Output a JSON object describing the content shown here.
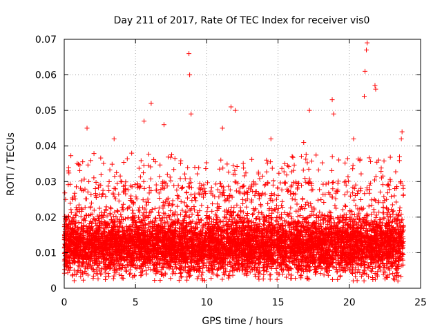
{
  "chart_data": {
    "type": "scatter",
    "title": "Day 211 of 2017, Rate Of TEC Index for receiver vis0",
    "xlabel": "GPS time / hours",
    "ylabel": "ROTI / TECUs",
    "xlim": [
      0,
      25
    ],
    "ylim": [
      0,
      0.07
    ],
    "xticks": [
      0,
      5,
      10,
      15,
      20,
      25
    ],
    "xtick_labels": [
      "0",
      "5",
      "10",
      "15",
      "20",
      "25"
    ],
    "yticks": [
      0,
      0.01,
      0.02,
      0.03,
      0.04,
      0.05,
      0.06,
      0.07
    ],
    "ytick_labels": [
      "0",
      "0.01",
      "0.02",
      "0.03",
      "0.04",
      "0.05",
      "0.06",
      "0.07"
    ],
    "grid": true,
    "marker": "+",
    "color": "#ff0000",
    "data_x_range_hours": [
      0,
      23.8
    ],
    "typical_roti_band": [
      0.005,
      0.025
    ],
    "bulk_centre_roti": 0.012,
    "notable_points": [
      {
        "x": 0.3,
        "y": 0.033
      },
      {
        "x": 1.6,
        "y": 0.045
      },
      {
        "x": 3.5,
        "y": 0.042
      },
      {
        "x": 5.6,
        "y": 0.047
      },
      {
        "x": 6.1,
        "y": 0.052
      },
      {
        "x": 7.0,
        "y": 0.046
      },
      {
        "x": 8.75,
        "y": 0.066
      },
      {
        "x": 8.8,
        "y": 0.06
      },
      {
        "x": 8.9,
        "y": 0.049
      },
      {
        "x": 11.1,
        "y": 0.045
      },
      {
        "x": 11.7,
        "y": 0.051
      },
      {
        "x": 12.0,
        "y": 0.05
      },
      {
        "x": 14.5,
        "y": 0.042
      },
      {
        "x": 16.8,
        "y": 0.041
      },
      {
        "x": 17.2,
        "y": 0.05
      },
      {
        "x": 18.8,
        "y": 0.053
      },
      {
        "x": 18.9,
        "y": 0.049
      },
      {
        "x": 20.3,
        "y": 0.042
      },
      {
        "x": 21.05,
        "y": 0.054
      },
      {
        "x": 21.1,
        "y": 0.061
      },
      {
        "x": 21.2,
        "y": 0.067
      },
      {
        "x": 21.25,
        "y": 0.069
      },
      {
        "x": 21.8,
        "y": 0.057
      },
      {
        "x": 21.85,
        "y": 0.056
      },
      {
        "x": 23.7,
        "y": 0.044
      },
      {
        "x": 23.65,
        "y": 0.042
      }
    ]
  }
}
